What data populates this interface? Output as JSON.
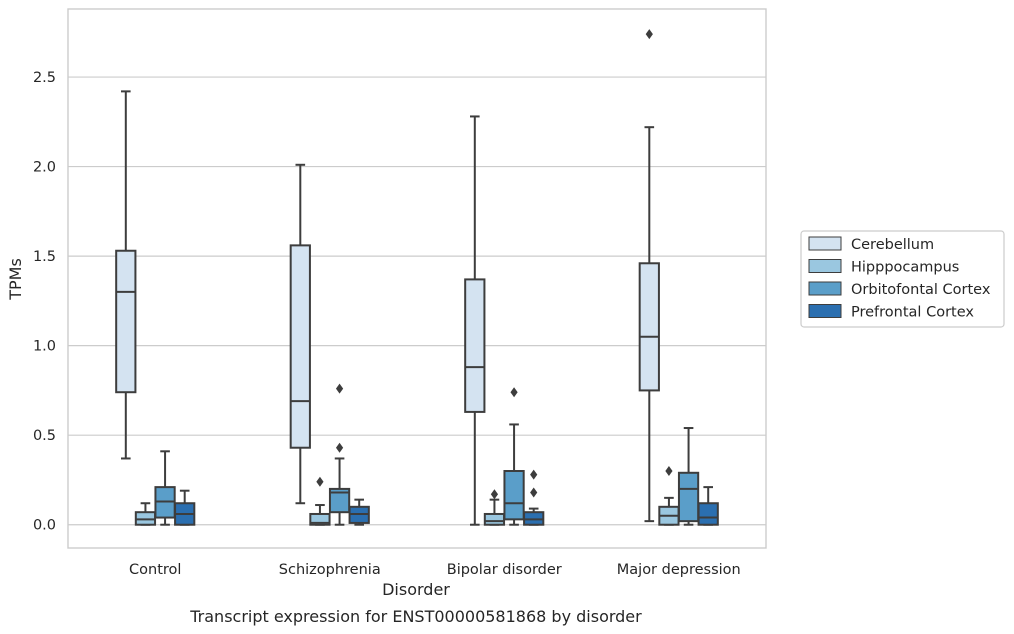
{
  "chart_data": {
    "type": "box",
    "xlabel": "Disorder",
    "ylabel": "TPMs",
    "caption": "Transcript expression for ENST00000581868 by disorder",
    "ylim": [
      -0.13,
      2.88
    ],
    "yticks": [
      "0.0",
      "0.5",
      "1.0",
      "1.5",
      "2.0",
      "2.5"
    ],
    "grid": "horizontal",
    "legend_position": "right",
    "categories": [
      "Control",
      "Schizophrenia",
      "Bipolar disorder",
      "Major depression"
    ],
    "series": [
      {
        "name": "Cerebellum",
        "color": "#d4e3f1",
        "boxes": [
          {
            "whislo": 0.37,
            "q1": 0.74,
            "med": 1.3,
            "q3": 1.53,
            "whishi": 2.42,
            "fliers": []
          },
          {
            "whislo": 0.12,
            "q1": 0.43,
            "med": 0.69,
            "q3": 1.56,
            "whishi": 2.01,
            "fliers": []
          },
          {
            "whislo": 0.0,
            "q1": 0.63,
            "med": 0.88,
            "q3": 1.37,
            "whishi": 2.28,
            "fliers": []
          },
          {
            "whislo": 0.02,
            "q1": 0.75,
            "med": 1.05,
            "q3": 1.46,
            "whishi": 2.22,
            "fliers": [
              2.74
            ]
          }
        ]
      },
      {
        "name": "Hipppocampus",
        "color": "#9ac7e0",
        "boxes": [
          {
            "whislo": 0.0,
            "q1": 0.0,
            "med": 0.03,
            "q3": 0.07,
            "whishi": 0.12,
            "fliers": []
          },
          {
            "whislo": 0.0,
            "q1": 0.0,
            "med": 0.01,
            "q3": 0.06,
            "whishi": 0.11,
            "fliers": [
              0.24
            ]
          },
          {
            "whislo": 0.0,
            "q1": 0.0,
            "med": 0.02,
            "q3": 0.06,
            "whishi": 0.14,
            "fliers": [
              0.17
            ]
          },
          {
            "whislo": 0.0,
            "q1": 0.0,
            "med": 0.05,
            "q3": 0.1,
            "whishi": 0.15,
            "fliers": [
              0.3
            ]
          }
        ]
      },
      {
        "name": "Orbitofontal Cortex",
        "color": "#5a9ec9",
        "boxes": [
          {
            "whislo": 0.0,
            "q1": 0.04,
            "med": 0.13,
            "q3": 0.21,
            "whishi": 0.41,
            "fliers": []
          },
          {
            "whislo": 0.0,
            "q1": 0.07,
            "med": 0.18,
            "q3": 0.2,
            "whishi": 0.37,
            "fliers": [
              0.43,
              0.76
            ]
          },
          {
            "whislo": 0.0,
            "q1": 0.03,
            "med": 0.12,
            "q3": 0.3,
            "whishi": 0.56,
            "fliers": [
              0.74
            ]
          },
          {
            "whislo": 0.0,
            "q1": 0.02,
            "med": 0.2,
            "q3": 0.29,
            "whishi": 0.54,
            "fliers": []
          }
        ]
      },
      {
        "name": "Prefrontal Cortex",
        "color": "#2b6fb0",
        "boxes": [
          {
            "whislo": 0.0,
            "q1": 0.0,
            "med": 0.06,
            "q3": 0.12,
            "whishi": 0.19,
            "fliers": []
          },
          {
            "whislo": 0.0,
            "q1": 0.01,
            "med": 0.06,
            "q3": 0.1,
            "whishi": 0.14,
            "fliers": []
          },
          {
            "whislo": 0.0,
            "q1": 0.0,
            "med": 0.03,
            "q3": 0.07,
            "whishi": 0.09,
            "fliers": [
              0.18,
              0.28
            ]
          },
          {
            "whislo": 0.0,
            "q1": 0.0,
            "med": 0.04,
            "q3": 0.12,
            "whishi": 0.21,
            "fliers": []
          }
        ]
      }
    ]
  }
}
